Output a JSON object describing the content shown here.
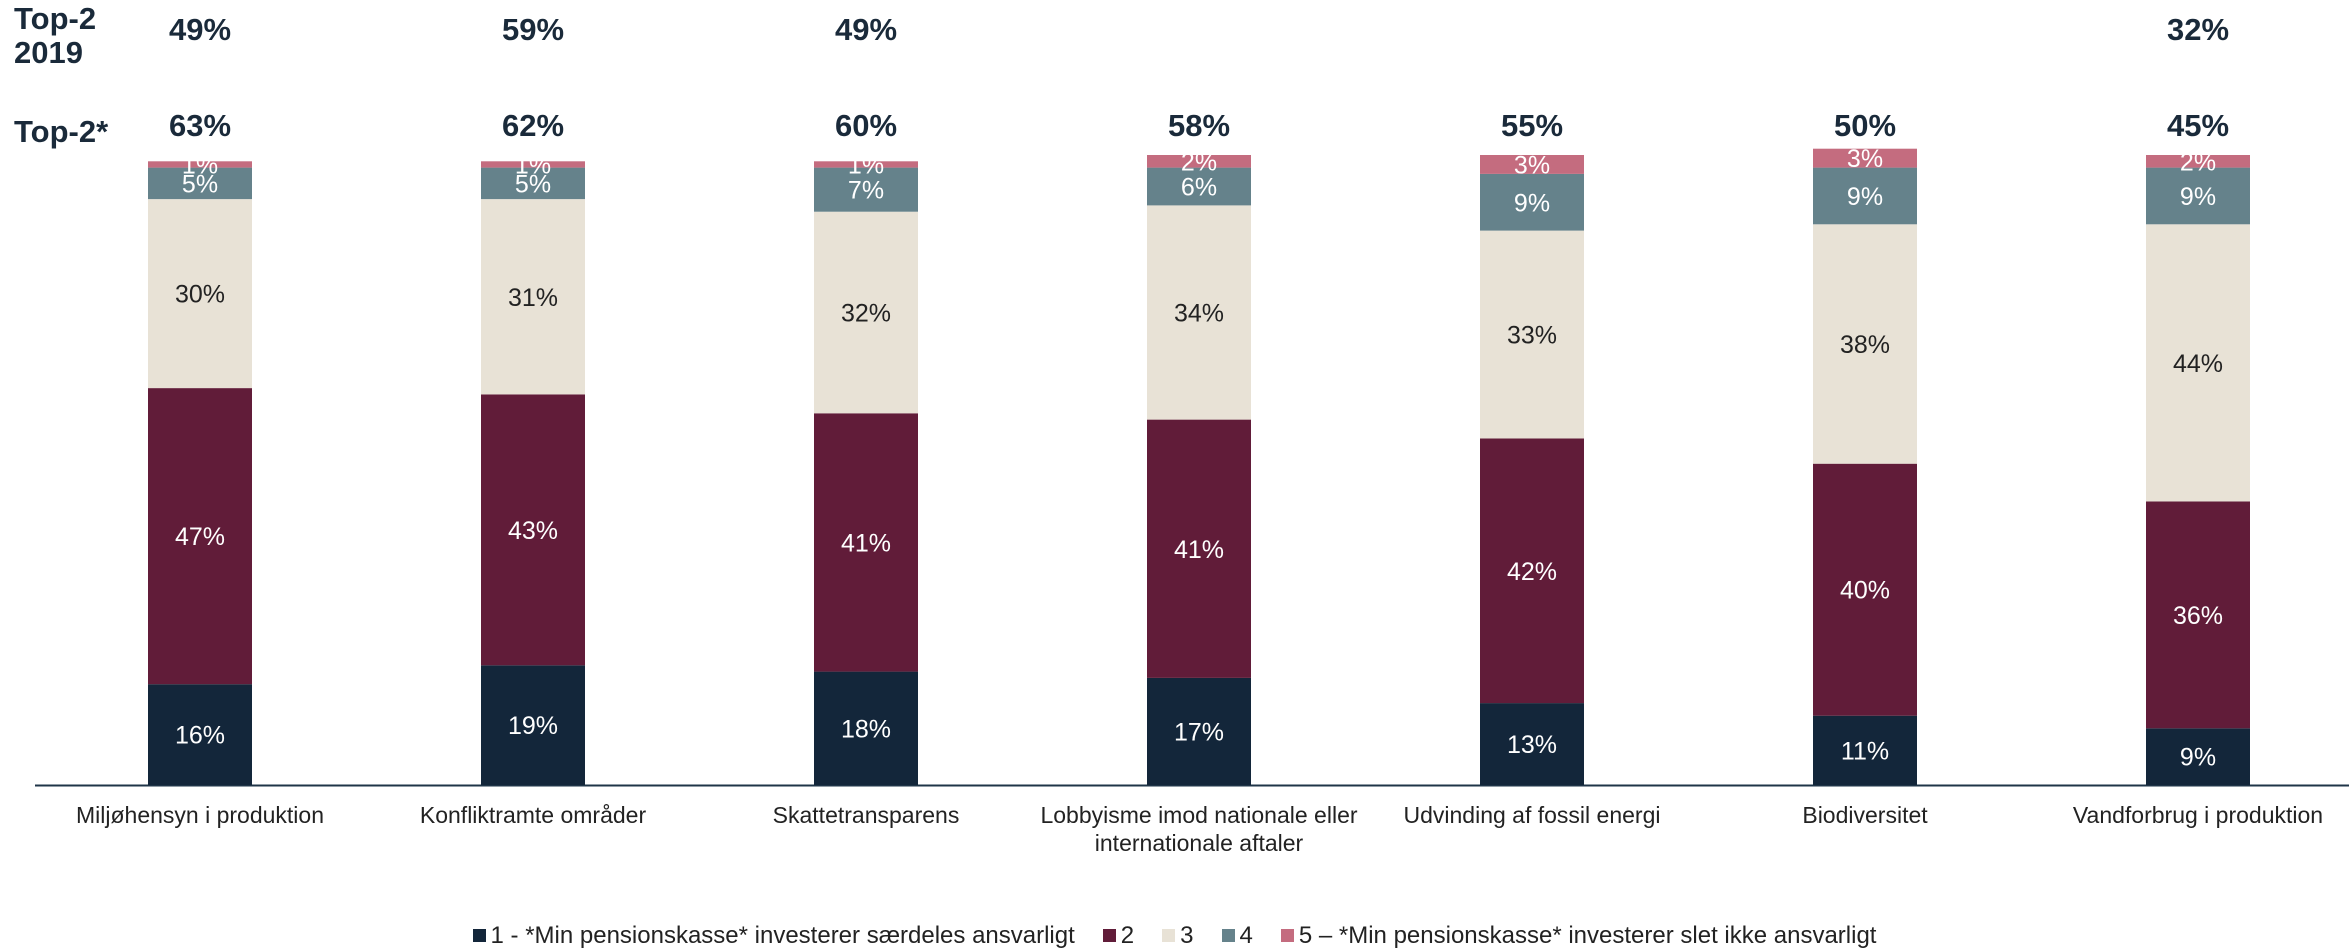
{
  "row_labels": {
    "top2_2019": "Top-2\n2019",
    "top2": "Top-2*"
  },
  "colors": {
    "seg1": "#13263a",
    "seg2": "#611c39",
    "seg3": "#e8e2d6",
    "seg4": "#65828b",
    "seg5": "#c46c7f",
    "axis": "#1f3548",
    "header_text": "#1a2a3a"
  },
  "legend": [
    {
      "label": "1 - *Min pensionskasse* investerer særdeles ansvarligt",
      "color_key": "seg1"
    },
    {
      "label": "2",
      "color_key": "seg2"
    },
    {
      "label": "3",
      "color_key": "seg3"
    },
    {
      "label": "4",
      "color_key": "seg4"
    },
    {
      "label": "5 – *Min pensionskasse* investerer slet ikke ansvarligt",
      "color_key": "seg5"
    }
  ],
  "chart_data": {
    "type": "bar",
    "stacked": true,
    "orientation": "vertical",
    "categories": [
      [
        "Miljøhensyn i produktion"
      ],
      [
        "Konfliktramte områder"
      ],
      [
        "Skattetransparens"
      ],
      [
        "Lobbyisme imod nationale eller",
        "internationale aftaler"
      ],
      [
        "Udvinding af fossil energi"
      ],
      [
        "Biodiversitet"
      ],
      [
        "Vandforbrug i produktion"
      ]
    ],
    "series": [
      {
        "name": "1 - *Min pensionskasse* investerer særdeles ansvarligt",
        "values": [
          16,
          19,
          18,
          17,
          13,
          11,
          9
        ]
      },
      {
        "name": "2",
        "values": [
          47,
          43,
          41,
          41,
          42,
          40,
          36
        ]
      },
      {
        "name": "3",
        "values": [
          30,
          31,
          32,
          34,
          33,
          38,
          44
        ]
      },
      {
        "name": "4",
        "values": [
          5,
          5,
          7,
          6,
          9,
          9,
          9
        ]
      },
      {
        "name": "5 – *Min pensionskasse* investerer slet ikke ansvarligt",
        "values": [
          1,
          1,
          1,
          2,
          3,
          3,
          2
        ]
      }
    ],
    "value_suffix": "%",
    "top2": [
      "63%",
      "62%",
      "60%",
      "58%",
      "55%",
      "50%",
      "45%"
    ],
    "top2_2019": [
      "49%",
      "59%",
      "49%",
      "",
      "",
      "",
      "32%"
    ],
    "legend_position": "bottom",
    "grid": false
  }
}
